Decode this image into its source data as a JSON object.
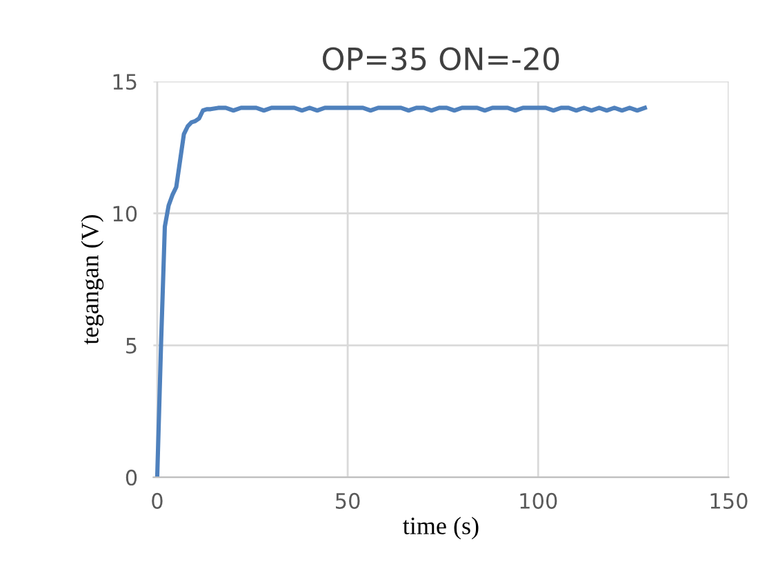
{
  "chart_data": {
    "type": "line",
    "title": "OP=35 ON=-20",
    "xlabel": "time (s)",
    "ylabel": "tegangan (V)",
    "x": [
      0,
      1,
      2,
      3,
      4,
      5,
      6,
      7,
      8,
      9,
      10,
      11,
      12,
      13,
      14,
      16,
      18,
      20,
      22,
      24,
      26,
      28,
      30,
      32,
      34,
      36,
      38,
      40,
      42,
      44,
      46,
      48,
      50,
      52,
      54,
      56,
      58,
      60,
      62,
      64,
      66,
      68,
      70,
      72,
      74,
      76,
      78,
      80,
      82,
      84,
      86,
      88,
      90,
      92,
      94,
      96,
      98,
      100,
      102,
      104,
      106,
      108,
      110,
      112,
      114,
      116,
      118,
      120,
      122,
      124,
      126,
      128
    ],
    "series": [
      {
        "color": "#4f81bd",
        "values": [
          0,
          5,
          9.5,
          10.3,
          10.7,
          11,
          12,
          13,
          13.3,
          13.45,
          13.5,
          13.6,
          13.9,
          13.95,
          13.95,
          14,
          14,
          13.9,
          14,
          14,
          14,
          13.9,
          14,
          14,
          14,
          14,
          13.9,
          14,
          13.9,
          14,
          14,
          14,
          14,
          14,
          14,
          13.9,
          14,
          14,
          14,
          14,
          13.9,
          14,
          14,
          13.9,
          14,
          14,
          13.9,
          14,
          14,
          14,
          13.9,
          14,
          14,
          14,
          13.9,
          14,
          14,
          14,
          14,
          13.9,
          14,
          14,
          13.9,
          14,
          13.9,
          14,
          13.9,
          14,
          13.9,
          14,
          13.9,
          14
        ]
      }
    ],
    "xlim": [
      -1,
      150
    ],
    "xticks": [
      0,
      50,
      100,
      150
    ],
    "ylim": [
      0,
      15
    ],
    "yticks": [
      0,
      5,
      10,
      15
    ],
    "grid": true,
    "legend": false,
    "marker": "none",
    "line_style": "solid"
  }
}
